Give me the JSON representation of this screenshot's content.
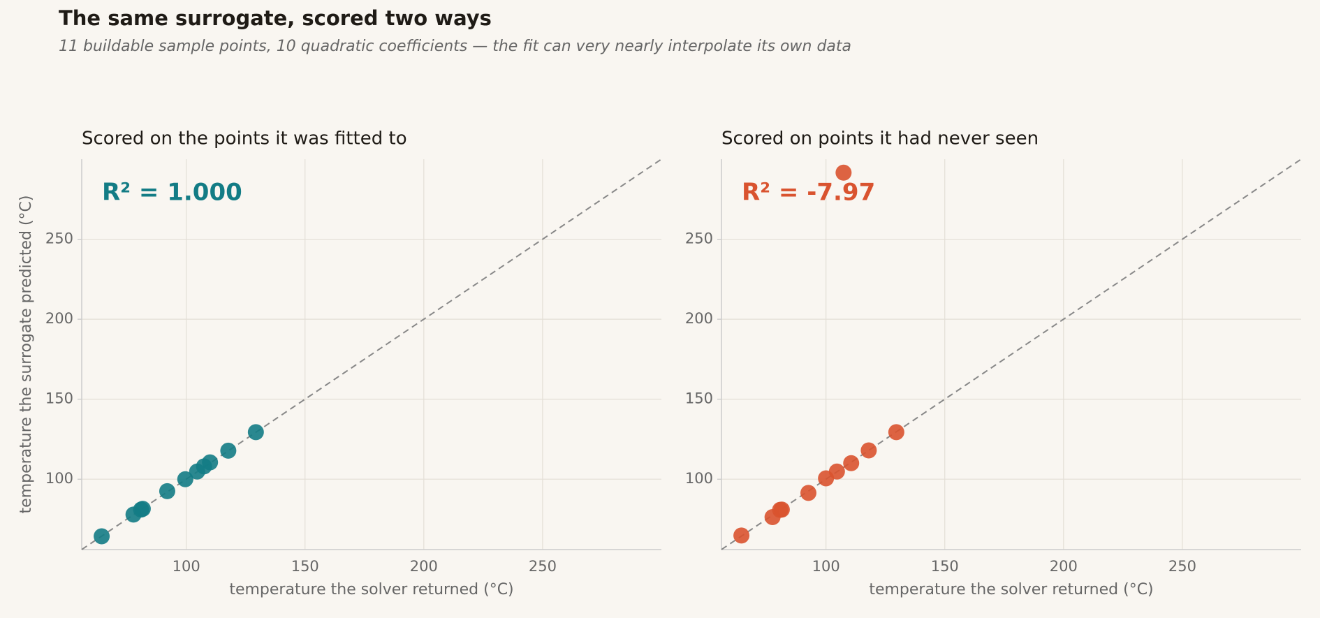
{
  "title": "The same surrogate, scored two ways",
  "subtitle": "11 buildable sample points, 10 quadratic coefficients — the fit can very nearly interpolate its own data",
  "chart_data": [
    {
      "type": "scatter",
      "title": "Scored on the points it was fitted to",
      "annotation": "R² = 1.000",
      "xlabel": "temperature the solver returned  (°C)",
      "ylabel": "temperature the surrogate predicted  (°C)",
      "color": "#137c85",
      "x": [
        64.4,
        77.8,
        81,
        81.7,
        92,
        99.6,
        104.6,
        107.5,
        110,
        117.7,
        129.3
      ],
      "values": [
        64.3,
        77.9,
        81,
        81.5,
        92.5,
        100,
        104.8,
        108,
        110.5,
        117.8,
        129.4
      ],
      "xlim": [
        56,
        300
      ],
      "ylim": [
        56,
        300
      ],
      "xticks": [
        100,
        150,
        200,
        250
      ],
      "yticks": [
        100,
        150,
        200,
        250
      ],
      "grid": true,
      "diagonal": true
    },
    {
      "type": "scatter",
      "title": "Scored on points it had never seen",
      "annotation": "R² = -7.97",
      "xlabel": "temperature the solver returned  (°C)",
      "color": "#d9532f",
      "x": [
        64.4,
        77.5,
        80.7,
        81.4,
        92.6,
        100,
        104.6,
        107.4,
        110.6,
        118,
        129.6
      ],
      "values": [
        64.8,
        76.3,
        80.8,
        81,
        91.4,
        100.5,
        104.8,
        291.6,
        110,
        118,
        129.4
      ],
      "xlim": [
        56,
        300
      ],
      "ylim": [
        56,
        300
      ],
      "xticks": [
        100,
        150,
        200,
        250
      ],
      "yticks": [
        100,
        150,
        200,
        250
      ],
      "grid": true,
      "diagonal": true
    }
  ]
}
